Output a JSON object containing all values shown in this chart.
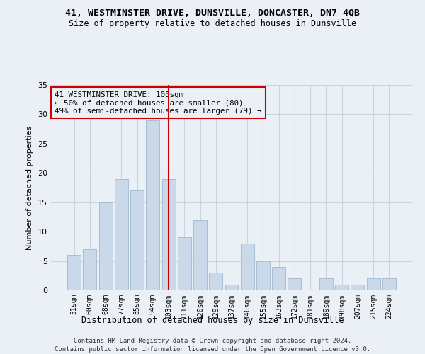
{
  "title1": "41, WESTMINSTER DRIVE, DUNSVILLE, DONCASTER, DN7 4QB",
  "title2": "Size of property relative to detached houses in Dunsville",
  "xlabel": "Distribution of detached houses by size in Dunsville",
  "ylabel": "Number of detached properties",
  "categories": [
    "51sqm",
    "60sqm",
    "68sqm",
    "77sqm",
    "85sqm",
    "94sqm",
    "103sqm",
    "111sqm",
    "120sqm",
    "129sqm",
    "137sqm",
    "146sqm",
    "155sqm",
    "163sqm",
    "172sqm",
    "181sqm",
    "189sqm",
    "198sqm",
    "207sqm",
    "215sqm",
    "224sqm"
  ],
  "values": [
    6,
    7,
    15,
    19,
    17,
    29,
    19,
    9,
    12,
    3,
    1,
    8,
    5,
    4,
    2,
    0,
    2,
    1,
    1,
    2,
    2
  ],
  "bar_color": "#c9d9ea",
  "bar_edge_color": "#a8bfd4",
  "grid_color": "#c8d4df",
  "vline_x_idx": 6,
  "vline_color": "#cc0000",
  "annotation_title": "41 WESTMINSTER DRIVE: 100sqm",
  "annotation_line1": "← 50% of detached houses are smaller (80)",
  "annotation_line2": "49% of semi-detached houses are larger (79) →",
  "annotation_box_color": "#cc0000",
  "ylim": [
    0,
    35
  ],
  "yticks": [
    0,
    5,
    10,
    15,
    20,
    25,
    30,
    35
  ],
  "footnote1": "Contains HM Land Registry data © Crown copyright and database right 2024.",
  "footnote2": "Contains public sector information licensed under the Open Government Licence v3.0.",
  "bg_color": "#eaf0f6",
  "plot_bg_color": "#eaf0f6"
}
